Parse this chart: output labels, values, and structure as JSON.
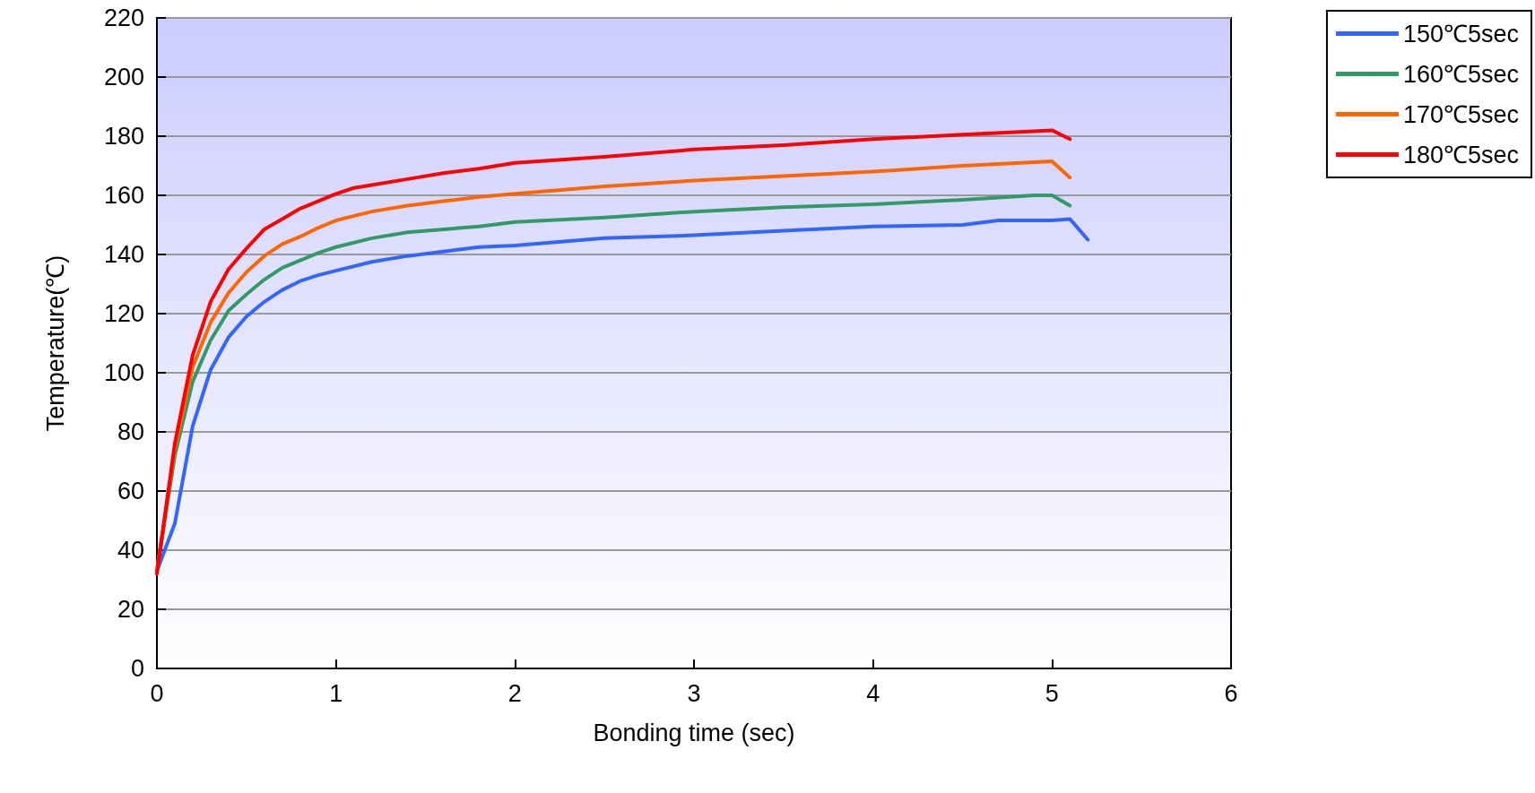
{
  "chart_data": {
    "type": "line",
    "xlabel": "Bonding time (sec)",
    "ylabel": "Temperature(℃)",
    "xlim": [
      0,
      6
    ],
    "xticks": [
      0,
      1,
      2,
      3,
      4,
      5,
      6
    ],
    "ylim": [
      0,
      220
    ],
    "yticks": [
      0,
      20,
      40,
      60,
      80,
      100,
      120,
      140,
      160,
      180,
      200,
      220
    ],
    "grid": "y",
    "legend": "right",
    "marker": "none",
    "line_style": "solid",
    "series": [
      {
        "name": "150℃5sec",
        "color": "#3366ff",
        "x": [
          0,
          0.1,
          0.2,
          0.3,
          0.4,
          0.5,
          0.6,
          0.7,
          0.8,
          0.9,
          1.0,
          1.2,
          1.4,
          1.6,
          1.8,
          2.0,
          2.5,
          3.0,
          3.5,
          4.0,
          4.5,
          4.7,
          5.0,
          5.1,
          5.2
        ],
        "values": [
          33,
          49,
          82,
          101,
          112,
          119,
          124,
          128,
          131,
          133,
          134.5,
          137.5,
          139.5,
          141,
          142.5,
          143,
          145.5,
          146.5,
          148,
          149.5,
          150,
          151.5,
          151.5,
          152,
          145
        ]
      },
      {
        "name": "160℃5sec",
        "color": "#339966",
        "x": [
          0,
          0.1,
          0.2,
          0.3,
          0.4,
          0.5,
          0.6,
          0.7,
          0.8,
          0.9,
          1.0,
          1.2,
          1.4,
          1.6,
          1.8,
          2.0,
          2.5,
          3.0,
          3.5,
          4.0,
          4.5,
          4.9,
          5.0,
          5.1
        ],
        "values": [
          33,
          72,
          97,
          111,
          121,
          126.5,
          131.5,
          135.5,
          138,
          140.5,
          142.5,
          145.5,
          147.5,
          148.5,
          149.5,
          151,
          152.5,
          154.5,
          156,
          157,
          158.5,
          160,
          160,
          156.5
        ]
      },
      {
        "name": "170℃5sec",
        "color": "#ff6600",
        "x": [
          0,
          0.1,
          0.2,
          0.3,
          0.4,
          0.5,
          0.6,
          0.7,
          0.8,
          0.9,
          1.0,
          1.2,
          1.4,
          1.6,
          1.8,
          2.0,
          2.5,
          3.0,
          3.5,
          4.0,
          4.5,
          5.0,
          5.1
        ],
        "values": [
          33,
          74,
          102,
          117,
          127,
          134,
          139.5,
          143.5,
          146,
          149,
          151.5,
          154.5,
          156.5,
          158,
          159.5,
          160.5,
          163,
          165,
          166.5,
          168,
          170,
          171.5,
          166
        ]
      },
      {
        "name": "180℃5sec",
        "color": "#ff0000",
        "x": [
          0,
          0.1,
          0.2,
          0.3,
          0.4,
          0.5,
          0.6,
          0.7,
          0.8,
          0.9,
          1.0,
          1.1,
          1.2,
          1.4,
          1.6,
          1.8,
          2.0,
          2.5,
          3.0,
          3.5,
          4.0,
          4.5,
          5.0,
          5.1
        ],
        "values": [
          32,
          76,
          106,
          124,
          135,
          142,
          148.5,
          152,
          155.5,
          158,
          160.5,
          162.5,
          163.5,
          165.5,
          167.5,
          169,
          171,
          173,
          175.5,
          177,
          179,
          180.5,
          182,
          179
        ]
      }
    ]
  }
}
